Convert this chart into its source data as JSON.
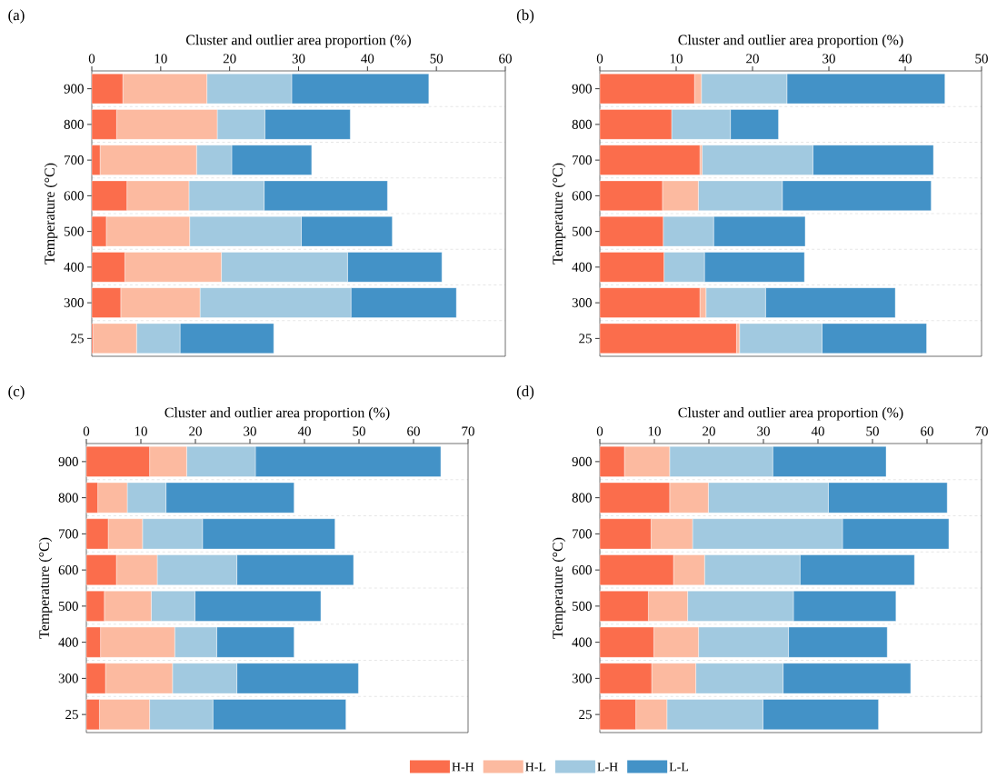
{
  "chart_data": [
    {
      "type": "bar",
      "orientation": "horizontal",
      "stacked": true,
      "xlabel": "Cluster and outlier area proportion (%)",
      "ylabel": "Temperature (°C)",
      "annotations": [
        "(a)"
      ],
      "categories": [
        "900",
        "800",
        "700",
        "600",
        "500",
        "400",
        "300",
        "25"
      ],
      "xlim": [
        0,
        60
      ],
      "xticks": [
        0,
        10,
        20,
        30,
        40,
        50,
        60
      ],
      "grid": "y",
      "series": [
        {
          "color": "#fb6d4c",
          "values": [
            4.5,
            3.6,
            1.2,
            5.1,
            2.1,
            4.8,
            4.2,
            0.2
          ]
        },
        {
          "color": "#fcbaa0",
          "values": [
            12.2,
            14.6,
            14.0,
            9.0,
            12.1,
            14.0,
            11.5,
            6.3
          ]
        },
        {
          "color": "#a1c9e0",
          "values": [
            12.3,
            6.9,
            5.1,
            10.9,
            16.2,
            18.3,
            21.9,
            6.3
          ]
        },
        {
          "color": "#4392c7",
          "values": [
            19.9,
            12.4,
            11.6,
            17.9,
            13.2,
            13.7,
            15.3,
            13.6
          ]
        }
      ]
    },
    {
      "type": "bar",
      "orientation": "horizontal",
      "stacked": true,
      "xlabel": "Cluster and outlier area proportion (%)",
      "ylabel": "Temperature (°C)",
      "annotations": [
        "(b)"
      ],
      "categories": [
        "900",
        "800",
        "700",
        "600",
        "500",
        "400",
        "300",
        "25"
      ],
      "xlim": [
        0,
        50
      ],
      "xticks": [
        0,
        10,
        20,
        30,
        40,
        50
      ],
      "grid": "y",
      "series": [
        {
          "color": "#fb6d4c",
          "values": [
            12.4,
            9.4,
            13.1,
            8.2,
            8.3,
            8.4,
            13.1,
            17.9
          ]
        },
        {
          "color": "#fcbaa0",
          "values": [
            0.9,
            0,
            0.3,
            4.7,
            0,
            0,
            0.8,
            0.4
          ]
        },
        {
          "color": "#a1c9e0",
          "values": [
            11.2,
            7.7,
            14.5,
            11.0,
            6.6,
            5.3,
            7.8,
            10.8
          ]
        },
        {
          "color": "#4392c7",
          "values": [
            20.7,
            6.3,
            15.8,
            19.5,
            12.0,
            13.1,
            17.0,
            13.7
          ]
        }
      ]
    },
    {
      "type": "bar",
      "orientation": "horizontal",
      "stacked": true,
      "xlabel": "Cluster and outlier area proportion (%)",
      "ylabel": "Temperature (°C)",
      "annotations": [
        "(c)"
      ],
      "categories": [
        "900",
        "800",
        "700",
        "600",
        "500",
        "400",
        "300",
        "25"
      ],
      "xlim": [
        0,
        70
      ],
      "xticks": [
        0,
        10,
        20,
        30,
        40,
        50,
        60,
        70
      ],
      "grid": "y",
      "series": [
        {
          "color": "#fb6d4c",
          "values": [
            11.6,
            2.1,
            4.0,
            5.5,
            3.3,
            2.6,
            3.5,
            2.4
          ]
        },
        {
          "color": "#fcbaa0",
          "values": [
            6.8,
            5.4,
            6.3,
            7.5,
            8.6,
            13.6,
            12.3,
            9.2
          ]
        },
        {
          "color": "#a1c9e0",
          "values": [
            12.6,
            7.1,
            11.0,
            14.6,
            8.0,
            7.7,
            11.8,
            11.6
          ]
        },
        {
          "color": "#4392c7",
          "values": [
            34.0,
            23.5,
            24.3,
            21.4,
            23.1,
            14.2,
            22.3,
            24.4
          ]
        }
      ]
    },
    {
      "type": "bar",
      "orientation": "horizontal",
      "stacked": true,
      "xlabel": "Cluster and outlier area proportion (%)",
      "ylabel": "Temperature (°C)",
      "annotations": [
        "(d)"
      ],
      "categories": [
        "900",
        "800",
        "700",
        "600",
        "500",
        "400",
        "300",
        "25"
      ],
      "xlim": [
        0,
        70
      ],
      "xticks": [
        0,
        10,
        20,
        30,
        40,
        50,
        60,
        70
      ],
      "grid": "y",
      "legend": "bottom",
      "series": [
        {
          "name": "H-H",
          "color": "#fb6d4c",
          "values": [
            4.5,
            12.8,
            9.4,
            13.5,
            8.9,
            9.9,
            9.5,
            6.6
          ]
        },
        {
          "name": "H-L",
          "color": "#fcbaa0",
          "values": [
            8.3,
            7.1,
            7.6,
            5.7,
            7.2,
            8.2,
            8.1,
            5.7
          ]
        },
        {
          "name": "L-H",
          "color": "#a1c9e0",
          "values": [
            18.9,
            22.0,
            27.5,
            17.5,
            19.4,
            16.5,
            16.0,
            17.6
          ]
        },
        {
          "name": "L-L",
          "color": "#4392c7",
          "values": [
            20.8,
            21.8,
            19.5,
            21.0,
            18.8,
            18.1,
            23.4,
            21.2
          ]
        }
      ]
    }
  ]
}
